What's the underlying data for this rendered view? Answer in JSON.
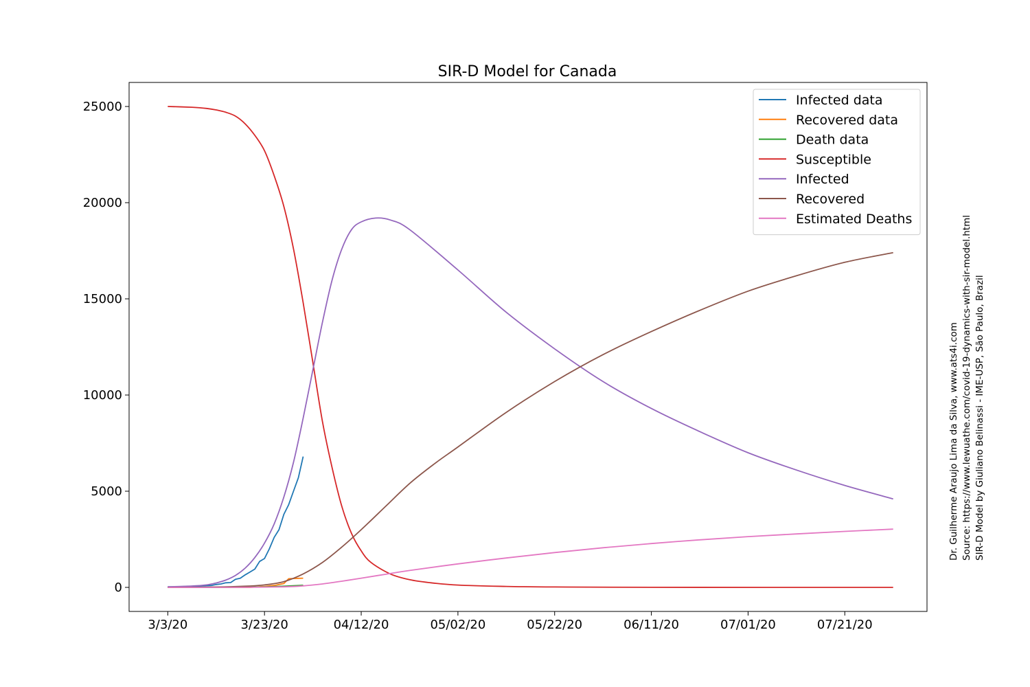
{
  "chart_data": {
    "type": "line",
    "title": "SIR-D Model for Canada",
    "xlabel": "",
    "ylabel": "",
    "x_start_date": "2020-03-03",
    "x_end_date": "2020-07-31",
    "xlim": [
      "2020-02-24",
      "2020-08-07"
    ],
    "ylim": [
      -1250,
      26250
    ],
    "yticks": [
      0,
      5000,
      10000,
      15000,
      20000,
      25000
    ],
    "ytick_labels": [
      "0",
      "5000",
      "10000",
      "15000",
      "20000",
      "25000"
    ],
    "xticks": [
      "2020-03-03",
      "2020-03-23",
      "2020-04-12",
      "2020-05-02",
      "2020-05-22",
      "2020-06-11",
      "2020-07-01",
      "2020-07-21"
    ],
    "xtick_labels": [
      "3/3/20",
      "3/23/20",
      "04/12/20",
      "05/02/20",
      "05/22/20",
      "06/11/20",
      "07/01/20",
      "07/21/20"
    ],
    "grid": false,
    "legend_position": "top-right",
    "model_series": [
      {
        "name": "Susceptible",
        "color": "#d62728",
        "points": [
          [
            "2020-03-03",
            25000
          ],
          [
            "2020-03-08",
            24960
          ],
          [
            "2020-03-11",
            24900
          ],
          [
            "2020-03-13",
            24820
          ],
          [
            "2020-03-15",
            24700
          ],
          [
            "2020-03-17",
            24500
          ],
          [
            "2020-03-19",
            24100
          ],
          [
            "2020-03-21",
            23500
          ],
          [
            "2020-03-23",
            22700
          ],
          [
            "2020-03-25",
            21400
          ],
          [
            "2020-03-27",
            19800
          ],
          [
            "2020-03-29",
            17600
          ],
          [
            "2020-03-31",
            14800
          ],
          [
            "2020-04-02",
            11700
          ],
          [
            "2020-04-04",
            8600
          ],
          [
            "2020-04-06",
            6200
          ],
          [
            "2020-04-08",
            4200
          ],
          [
            "2020-04-10",
            2800
          ],
          [
            "2020-04-12",
            1900
          ],
          [
            "2020-04-14",
            1300
          ],
          [
            "2020-04-18",
            700
          ],
          [
            "2020-04-22",
            400
          ],
          [
            "2020-04-26",
            250
          ],
          [
            "2020-05-02",
            120
          ],
          [
            "2020-05-12",
            50
          ],
          [
            "2020-05-22",
            20
          ],
          [
            "2020-06-11",
            5
          ],
          [
            "2020-07-31",
            0
          ]
        ]
      },
      {
        "name": "Infected",
        "color": "#9467bd",
        "points": [
          [
            "2020-03-03",
            30
          ],
          [
            "2020-03-08",
            70
          ],
          [
            "2020-03-11",
            130
          ],
          [
            "2020-03-13",
            230
          ],
          [
            "2020-03-15",
            380
          ],
          [
            "2020-03-17",
            620
          ],
          [
            "2020-03-19",
            1000
          ],
          [
            "2020-03-21",
            1550
          ],
          [
            "2020-03-23",
            2300
          ],
          [
            "2020-03-25",
            3300
          ],
          [
            "2020-03-27",
            4700
          ],
          [
            "2020-03-29",
            6500
          ],
          [
            "2020-03-31",
            8800
          ],
          [
            "2020-04-02",
            11300
          ],
          [
            "2020-04-04",
            13800
          ],
          [
            "2020-04-06",
            16000
          ],
          [
            "2020-04-08",
            17600
          ],
          [
            "2020-04-10",
            18600
          ],
          [
            "2020-04-12",
            19000
          ],
          [
            "2020-04-15",
            19200
          ],
          [
            "2020-04-18",
            19100
          ],
          [
            "2020-04-22",
            18600
          ],
          [
            "2020-05-02",
            16500
          ],
          [
            "2020-05-12",
            14300
          ],
          [
            "2020-05-22",
            12400
          ],
          [
            "2020-06-01",
            10700
          ],
          [
            "2020-06-11",
            9300
          ],
          [
            "2020-06-21",
            8100
          ],
          [
            "2020-07-01",
            7000
          ],
          [
            "2020-07-11",
            6100
          ],
          [
            "2020-07-21",
            5300
          ],
          [
            "2020-07-31",
            4600
          ]
        ]
      },
      {
        "name": "Recovered",
        "color": "#8c564b",
        "points": [
          [
            "2020-03-03",
            0
          ],
          [
            "2020-03-13",
            20
          ],
          [
            "2020-03-19",
            60
          ],
          [
            "2020-03-23",
            130
          ],
          [
            "2020-03-27",
            300
          ],
          [
            "2020-03-31",
            700
          ],
          [
            "2020-04-04",
            1300
          ],
          [
            "2020-04-08",
            2100
          ],
          [
            "2020-04-12",
            3000
          ],
          [
            "2020-04-17",
            4200
          ],
          [
            "2020-04-22",
            5400
          ],
          [
            "2020-04-27",
            6400
          ],
          [
            "2020-05-02",
            7300
          ],
          [
            "2020-05-12",
            9100
          ],
          [
            "2020-05-22",
            10700
          ],
          [
            "2020-06-01",
            12100
          ],
          [
            "2020-06-11",
            13300
          ],
          [
            "2020-06-21",
            14400
          ],
          [
            "2020-07-01",
            15400
          ],
          [
            "2020-07-11",
            16200
          ],
          [
            "2020-07-21",
            16900
          ],
          [
            "2020-07-31",
            17400
          ]
        ]
      },
      {
        "name": "Estimated Deaths",
        "color": "#e377c2",
        "points": [
          [
            "2020-03-03",
            0
          ],
          [
            "2020-03-19",
            5
          ],
          [
            "2020-03-27",
            30
          ],
          [
            "2020-03-31",
            80
          ],
          [
            "2020-04-04",
            180
          ],
          [
            "2020-04-08",
            320
          ],
          [
            "2020-04-12",
            480
          ],
          [
            "2020-04-17",
            680
          ],
          [
            "2020-04-22",
            880
          ],
          [
            "2020-05-02",
            1220
          ],
          [
            "2020-05-12",
            1530
          ],
          [
            "2020-05-22",
            1810
          ],
          [
            "2020-06-01",
            2060
          ],
          [
            "2020-06-11",
            2280
          ],
          [
            "2020-06-21",
            2470
          ],
          [
            "2020-07-01",
            2640
          ],
          [
            "2020-07-11",
            2780
          ],
          [
            "2020-07-21",
            2910
          ],
          [
            "2020-07-31",
            3030
          ]
        ]
      }
    ],
    "data_series": [
      {
        "name": "Infected data",
        "color": "#1f77b4",
        "points": [
          [
            "2020-03-03",
            30
          ],
          [
            "2020-03-05",
            35
          ],
          [
            "2020-03-07",
            50
          ],
          [
            "2020-03-09",
            60
          ],
          [
            "2020-03-11",
            90
          ],
          [
            "2020-03-12",
            100
          ],
          [
            "2020-03-13",
            150
          ],
          [
            "2020-03-14",
            180
          ],
          [
            "2020-03-15",
            240
          ],
          [
            "2020-03-16",
            250
          ],
          [
            "2020-03-17",
            420
          ],
          [
            "2020-03-18",
            480
          ],
          [
            "2020-03-19",
            650
          ],
          [
            "2020-03-20",
            800
          ],
          [
            "2020-03-21",
            950
          ],
          [
            "2020-03-22",
            1350
          ],
          [
            "2020-03-23",
            1500
          ],
          [
            "2020-03-24",
            2000
          ],
          [
            "2020-03-25",
            2600
          ],
          [
            "2020-03-26",
            3000
          ],
          [
            "2020-03-27",
            3800
          ],
          [
            "2020-03-28",
            4300
          ],
          [
            "2020-03-29",
            5000
          ],
          [
            "2020-03-30",
            5700
          ],
          [
            "2020-03-31",
            6800
          ]
        ]
      },
      {
        "name": "Recovered data",
        "color": "#ff7f0e",
        "points": [
          [
            "2020-03-03",
            0
          ],
          [
            "2020-03-20",
            0
          ],
          [
            "2020-03-23",
            50
          ],
          [
            "2020-03-25",
            100
          ],
          [
            "2020-03-27",
            200
          ],
          [
            "2020-03-28",
            450
          ],
          [
            "2020-03-29",
            460
          ],
          [
            "2020-03-30",
            470
          ],
          [
            "2020-03-31",
            480
          ]
        ]
      },
      {
        "name": "Death data",
        "color": "#2ca02c",
        "points": [
          [
            "2020-03-03",
            0
          ],
          [
            "2020-03-13",
            1
          ],
          [
            "2020-03-19",
            12
          ],
          [
            "2020-03-23",
            25
          ],
          [
            "2020-03-27",
            60
          ],
          [
            "2020-03-31",
            110
          ]
        ]
      }
    ],
    "legend_entries": [
      {
        "label": "Infected data",
        "color": "#1f77b4"
      },
      {
        "label": "Recovered data",
        "color": "#ff7f0e"
      },
      {
        "label": "Death data",
        "color": "#2ca02c"
      },
      {
        "label": "Susceptible",
        "color": "#d62728"
      },
      {
        "label": "Infected",
        "color": "#9467bd"
      },
      {
        "label": "Recovered",
        "color": "#8c564b"
      },
      {
        "label": "Estimated Deaths",
        "color": "#e377c2"
      }
    ]
  },
  "credits": {
    "line1": "Dr. Guilherme Araujo Lima da Silva, www.ats4i.com",
    "line2": "Source: https://www.lewuathe.com/covid-19-dynamics-with-sir-model.html",
    "line3": "SIR-D Model by Giuliano Belinassi - IME-USP, São Paulo, Brazil"
  }
}
